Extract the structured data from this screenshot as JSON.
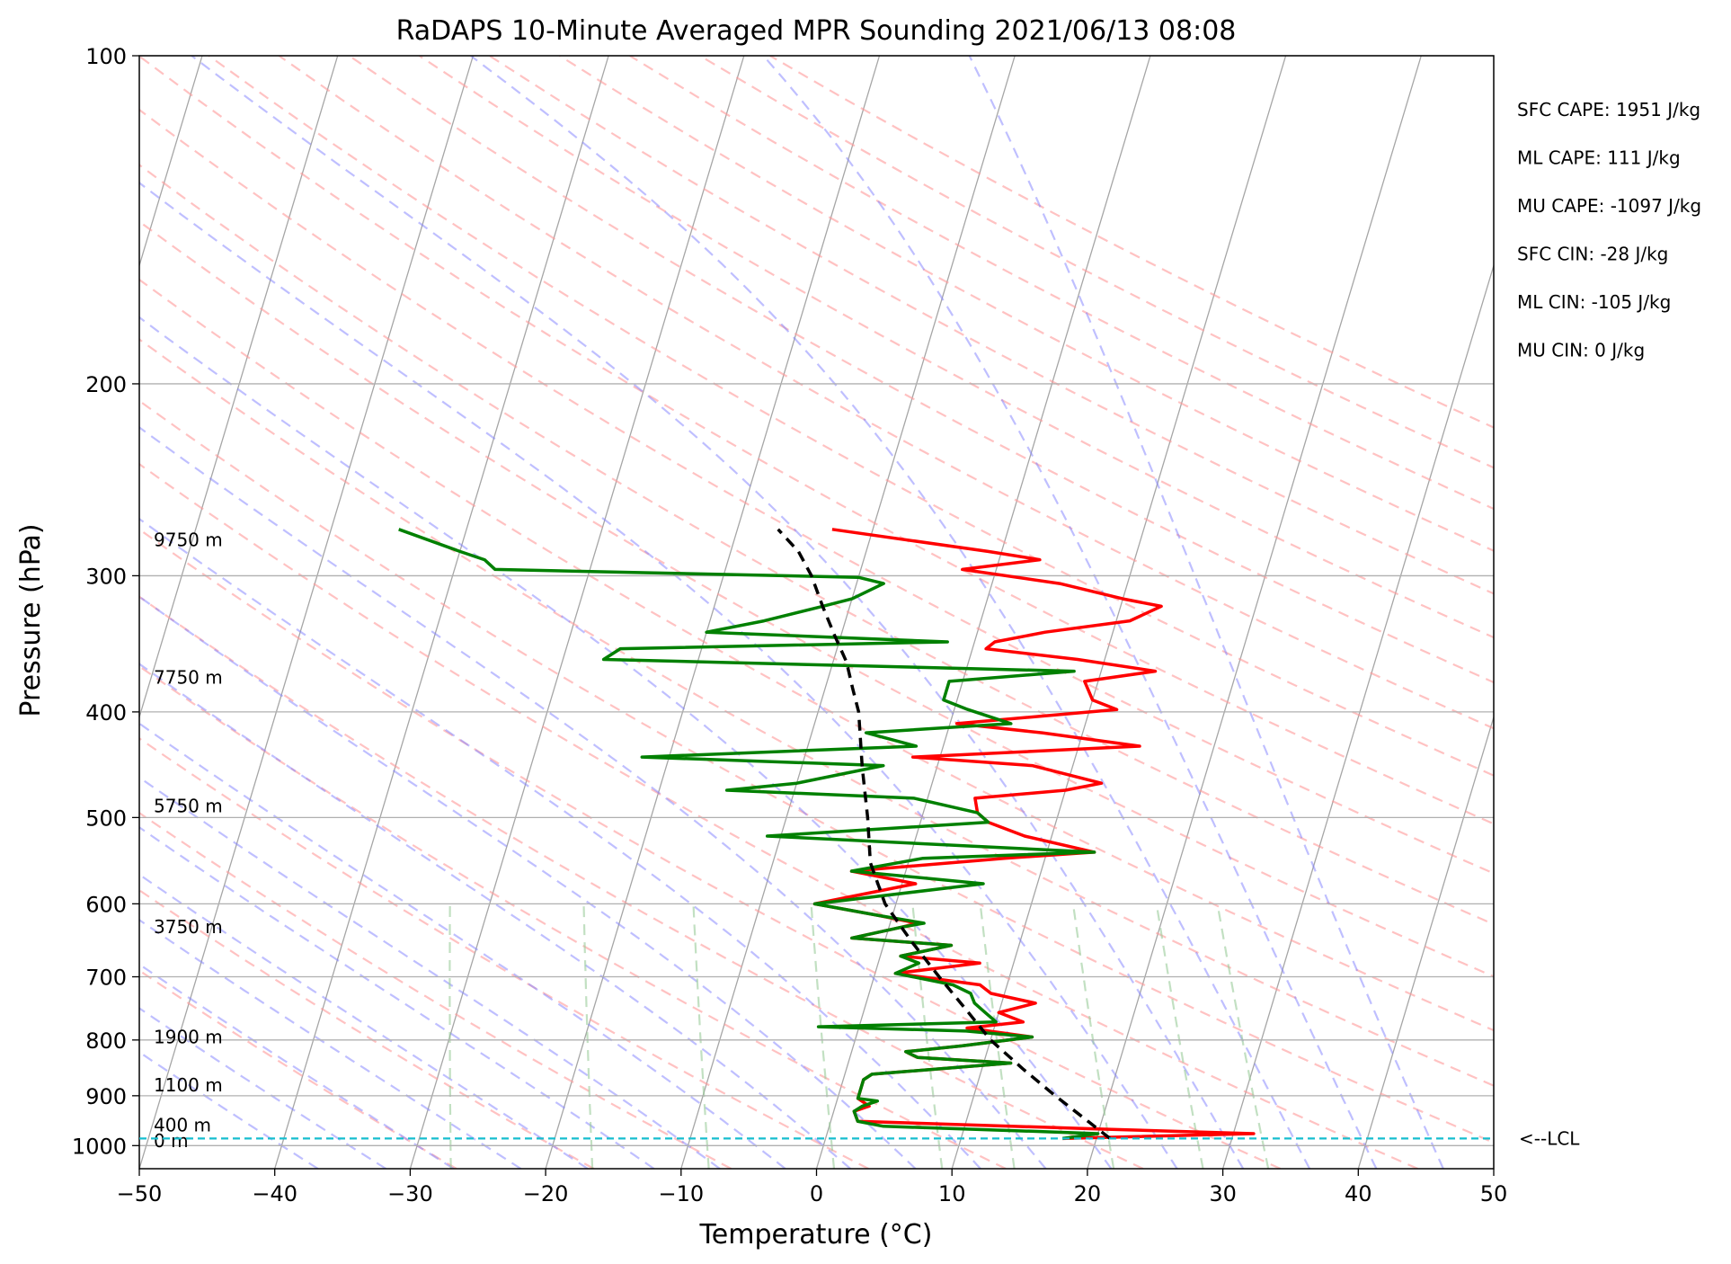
{
  "chart_data": {
    "type": "skew-t",
    "title": "RaDAPS 10-Minute Averaged MPR Sounding 2021/06/13 08:08",
    "xlabel": "Temperature (°C)",
    "ylabel": "Pressure (hPa)",
    "xlim": [
      -50,
      50
    ],
    "ylim_hpa": [
      1050,
      100
    ],
    "y_scale": "log",
    "x_ticks": [
      "−50",
      "−40",
      "−30",
      "−20",
      "−10",
      "0",
      "10",
      "20",
      "30",
      "40",
      "50"
    ],
    "y_ticks": [
      "100",
      "200",
      "300",
      "400",
      "500",
      "600",
      "700",
      "800",
      "900",
      "1000"
    ],
    "grid": true,
    "colors": {
      "temperature": "#ff0000",
      "dewpoint": "#008000",
      "parcel": "#000000",
      "dry_adiabats": "#ff9999",
      "moist_adiabats": "#8080ff",
      "mixing_ratio": "#99cc99",
      "lcl": "#17becf",
      "isotherms": "#a6a6a6"
    },
    "series": [
      {
        "name": "Temperature",
        "points": [
          [
            985,
            17.5
          ],
          [
            975,
            31.5
          ],
          [
            965,
            19.5
          ],
          [
            950,
            2
          ],
          [
            930,
            1.5
          ],
          [
            920,
            2.5
          ],
          [
            905,
            1.5
          ],
          [
            890,
            1.5
          ],
          [
            880,
            1.5
          ],
          [
            870,
            1.5
          ],
          [
            860,
            2
          ],
          [
            840,
            12
          ],
          [
            830,
            5
          ],
          [
            820,
            4
          ],
          [
            810,
            8
          ],
          [
            795,
            13
          ],
          [
            780,
            8
          ],
          [
            770,
            12
          ],
          [
            755,
            10
          ],
          [
            740,
            12.5
          ],
          [
            725,
            9
          ],
          [
            712,
            8
          ],
          [
            695,
            1.5
          ],
          [
            680,
            7.5
          ],
          [
            670,
            1.5
          ],
          [
            655,
            5
          ],
          [
            645,
            -2.5
          ],
          [
            630,
            1
          ],
          [
            625,
            2
          ],
          [
            615,
            -1
          ],
          [
            600,
            -6
          ],
          [
            575,
            1
          ],
          [
            560,
            -4
          ],
          [
            545,
            7
          ],
          [
            538,
            13.5
          ],
          [
            520,
            8
          ],
          [
            505,
            5
          ],
          [
            495,
            4
          ],
          [
            480,
            3.5
          ],
          [
            472,
            10
          ],
          [
            465,
            12.5
          ],
          [
            448,
            7
          ],
          [
            440,
            -2
          ],
          [
            430,
            14.5
          ],
          [
            418,
            7
          ],
          [
            410,
            0.5
          ],
          [
            398,
            12
          ],
          [
            390,
            10
          ],
          [
            375,
            9
          ],
          [
            367,
            14
          ],
          [
            358,
            8
          ],
          [
            350,
            1
          ],
          [
            345,
            1.5
          ],
          [
            338,
            5
          ],
          [
            330,
            11
          ],
          [
            320,
            13
          ],
          [
            315,
            10
          ],
          [
            305,
            5
          ],
          [
            296,
            -2.5
          ],
          [
            290,
            3
          ],
          [
            285,
            -1
          ],
          [
            272,
            -13
          ]
        ]
      },
      {
        "name": "Dewpoint",
        "points": [
          [
            985,
            17.5
          ],
          [
            975,
            20
          ],
          [
            970,
            15
          ],
          [
            960,
            4
          ],
          [
            950,
            2
          ],
          [
            930,
            1.5
          ],
          [
            920,
            2
          ],
          [
            910,
            3
          ],
          [
            905,
            1.5
          ],
          [
            890,
            1.5
          ],
          [
            880,
            1.5
          ],
          [
            870,
            1.5
          ],
          [
            860,
            2
          ],
          [
            840,
            12
          ],
          [
            830,
            5
          ],
          [
            820,
            4
          ],
          [
            810,
            8
          ],
          [
            795,
            13
          ],
          [
            785,
            8
          ],
          [
            778,
            -3
          ],
          [
            770,
            10
          ],
          [
            755,
            9
          ],
          [
            740,
            8
          ],
          [
            725,
            7.5
          ],
          [
            712,
            6
          ],
          [
            695,
            1.5
          ],
          [
            680,
            3
          ],
          [
            670,
            1.5
          ],
          [
            655,
            5
          ],
          [
            645,
            -2.5
          ],
          [
            630,
            1
          ],
          [
            625,
            2.5
          ],
          [
            615,
            -1
          ],
          [
            600,
            -6
          ],
          [
            575,
            6
          ],
          [
            560,
            -4
          ],
          [
            545,
            1
          ],
          [
            538,
            13.5
          ],
          [
            520,
            -11
          ],
          [
            505,
            5
          ],
          [
            495,
            4
          ],
          [
            480,
            -1
          ],
          [
            472,
            -15
          ],
          [
            465,
            -10
          ],
          [
            448,
            -4
          ],
          [
            440,
            -22
          ],
          [
            430,
            -2
          ],
          [
            418,
            -6
          ],
          [
            410,
            4.5
          ],
          [
            398,
            1
          ],
          [
            390,
            -1
          ],
          [
            375,
            -1
          ],
          [
            367,
            8
          ],
          [
            358,
            -27
          ],
          [
            350,
            -26
          ],
          [
            345,
            -2
          ],
          [
            338,
            -20
          ],
          [
            330,
            -16
          ],
          [
            320,
            -12
          ],
          [
            315,
            -10
          ],
          [
            305,
            -8
          ],
          [
            301,
            -10
          ],
          [
            296,
            -37
          ],
          [
            290,
            -38
          ],
          [
            285,
            -40
          ],
          [
            272,
            -45
          ]
        ]
      },
      {
        "name": "Parcel",
        "points": [
          [
            985,
            21
          ],
          [
            950,
            19
          ],
          [
            900,
            16
          ],
          [
            850,
            13
          ],
          [
            800,
            10
          ],
          [
            750,
            7.5
          ],
          [
            700,
            4.8
          ],
          [
            650,
            2
          ],
          [
            600,
            -0.8
          ],
          [
            550,
            -2.8
          ],
          [
            500,
            -4
          ],
          [
            450,
            -5.5
          ],
          [
            400,
            -7
          ],
          [
            380,
            -8
          ],
          [
            360,
            -9
          ],
          [
            340,
            -10.5
          ],
          [
            320,
            -12
          ],
          [
            300,
            -13.5
          ],
          [
            285,
            -15
          ],
          [
            272,
            -17
          ]
        ]
      }
    ],
    "height_labels": [
      {
        "text": "9750 m",
        "p": 278
      },
      {
        "text": "7750 m",
        "p": 372
      },
      {
        "text": "5750 m",
        "p": 488
      },
      {
        "text": "3750 m",
        "p": 630
      },
      {
        "text": "1900 m",
        "p": 795
      },
      {
        "text": "1100 m",
        "p": 880
      },
      {
        "text": "400 m",
        "p": 958
      },
      {
        "text": "0 m",
        "p": 990
      }
    ],
    "lcl": {
      "p": 985,
      "label": "<--LCL"
    },
    "stats": [
      "SFC CAPE: 1951 J/kg",
      "ML CAPE: 111 J/kg",
      "MU CAPE: -1097 J/kg",
      "SFC CIN: -28 J/kg",
      "ML CIN: -105 J/kg",
      "MU CIN: 0 J/kg"
    ]
  }
}
